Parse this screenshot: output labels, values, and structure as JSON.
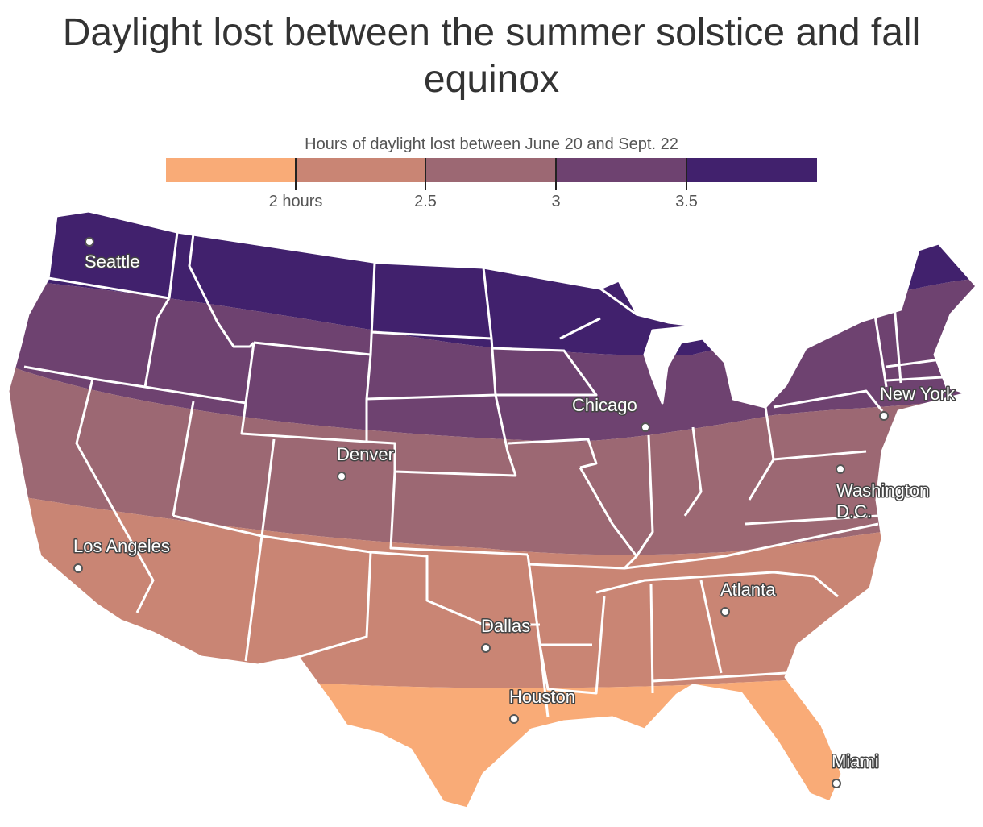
{
  "title": "Daylight lost between the summer solstice and fall equinox",
  "legend": {
    "title": "Hours of daylight lost between June 20 and Sept. 22",
    "colors": [
      "#f9ab77",
      "#c98574",
      "#9c6873",
      "#6e4270",
      "#41216d"
    ],
    "ticks": [
      "2 hours",
      "2.5",
      "3",
      "3.5"
    ]
  },
  "cities": [
    {
      "name": "Seattle"
    },
    {
      "name": "Chicago"
    },
    {
      "name": "New York"
    },
    {
      "name": "Denver"
    },
    {
      "name": "Washington D.C."
    },
    {
      "name": "Los Angeles"
    },
    {
      "name": "Atlanta"
    },
    {
      "name": "Dallas"
    },
    {
      "name": "Houston"
    },
    {
      "name": "Miami"
    }
  ]
}
